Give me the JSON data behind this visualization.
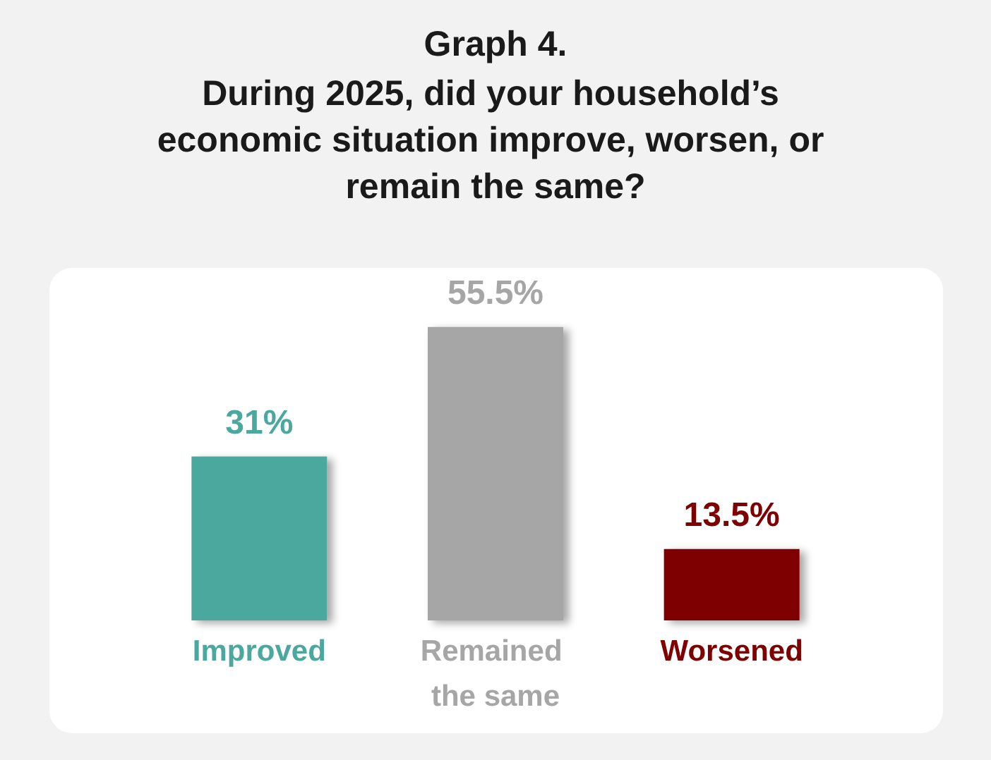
{
  "chart_data": {
    "type": "bar",
    "title": "Graph 4.",
    "subtitle": "During 2025, did your household’s economic situation improve, worsen, or remain the same?",
    "categories": [
      "Improved",
      "Remained the same",
      "Worsened"
    ],
    "values": [
      31,
      55.5,
      13.5
    ],
    "colors": [
      "#4ba89f",
      "#a6a6a6",
      "#7f0000"
    ],
    "value_labels": [
      "31%",
      "55.5%",
      "13.5%"
    ]
  }
}
